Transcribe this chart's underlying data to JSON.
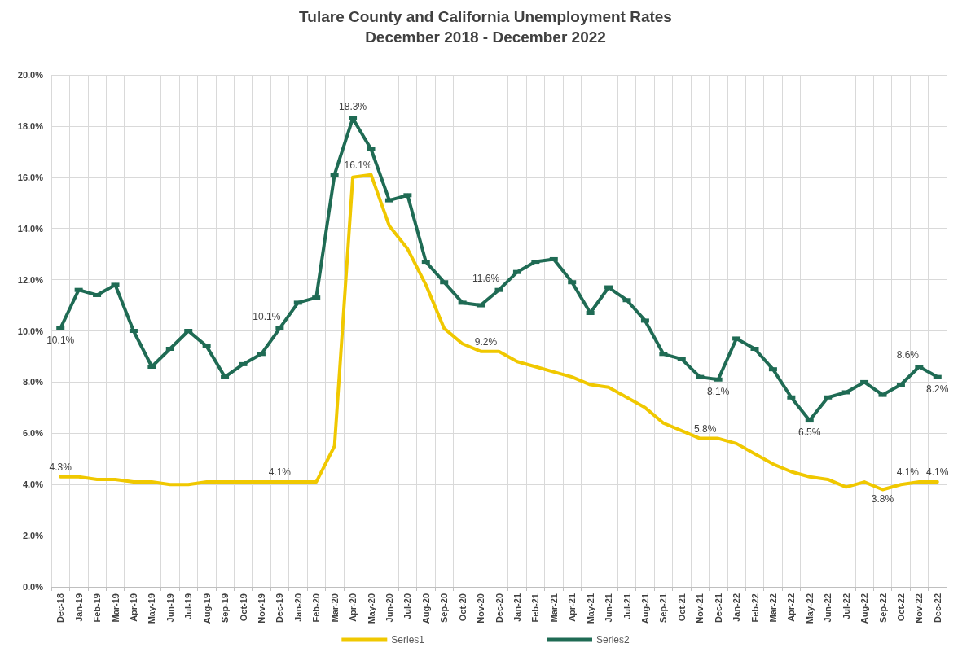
{
  "chart_data": {
    "type": "line",
    "title": "Tulare County and California Unemployment Rates",
    "subtitle": "December 2018 - December 2022",
    "categories": [
      "Dec-18",
      "Jan-19",
      "Feb-19",
      "Mar-19",
      "Apr-19",
      "May-19",
      "Jun-19",
      "Jul-19",
      "Aug-19",
      "Sep-19",
      "Oct-19",
      "Nov-19",
      "Dec-19",
      "Jan-20",
      "Feb-20",
      "Mar-20",
      "Apr-20",
      "May-20",
      "Jun-20",
      "Jul-20",
      "Aug-20",
      "Sep-20",
      "Oct-20",
      "Nov-20",
      "Dec-20",
      "Jan-21",
      "Feb-21",
      "Mar-21",
      "Apr-21",
      "May-21",
      "Jun-21",
      "Jul-21",
      "Aug-21",
      "Sep-21",
      "Oct-21",
      "Nov-21",
      "Dec-21",
      "Jan-22",
      "Feb-22",
      "Mar-22",
      "Apr-22",
      "May-22",
      "Jun-22",
      "Jul-22",
      "Aug-22",
      "Sep-22",
      "Oct-22",
      "Nov-22",
      "Dec-22"
    ],
    "series": [
      {
        "name": "Series1",
        "color": "#f0c800",
        "marker": "none",
        "values": [
          4.3,
          4.3,
          4.2,
          4.2,
          4.1,
          4.1,
          4.0,
          4.0,
          4.1,
          4.1,
          4.1,
          4.1,
          4.1,
          4.1,
          4.1,
          5.5,
          16.0,
          16.1,
          14.1,
          13.2,
          11.8,
          10.1,
          9.5,
          9.2,
          9.2,
          8.8,
          8.6,
          8.4,
          8.2,
          7.9,
          7.8,
          7.4,
          7.0,
          6.4,
          6.1,
          5.8,
          5.8,
          5.6,
          5.2,
          4.8,
          4.5,
          4.3,
          4.2,
          3.9,
          4.1,
          3.8,
          4.0,
          4.1,
          4.1
        ],
        "value_labels": [
          "4.3%",
          null,
          null,
          null,
          null,
          null,
          null,
          null,
          null,
          null,
          null,
          null,
          "4.1%",
          null,
          null,
          null,
          null,
          "16.1%",
          null,
          null,
          null,
          null,
          null,
          null,
          "9.2%",
          null,
          null,
          null,
          null,
          null,
          null,
          null,
          null,
          null,
          null,
          null,
          "5.8%",
          null,
          null,
          null,
          null,
          null,
          null,
          null,
          null,
          "3.8%",
          null,
          "4.1%",
          "4.1%"
        ]
      },
      {
        "name": "Series2",
        "color": "#1f6b54",
        "marker": "square",
        "values": [
          10.1,
          11.6,
          11.4,
          11.8,
          10.0,
          8.6,
          9.3,
          10.0,
          9.4,
          8.2,
          8.7,
          9.1,
          10.1,
          11.1,
          11.3,
          16.1,
          18.3,
          17.1,
          15.1,
          15.3,
          12.7,
          11.9,
          11.1,
          11.0,
          11.6,
          12.3,
          12.7,
          12.8,
          11.9,
          10.7,
          11.7,
          11.2,
          10.4,
          9.1,
          8.9,
          8.2,
          8.1,
          9.7,
          9.3,
          8.5,
          7.4,
          6.5,
          7.4,
          7.6,
          8.0,
          7.5,
          7.9,
          8.6,
          8.2
        ],
        "value_labels": [
          "10.1%",
          null,
          null,
          null,
          null,
          null,
          null,
          null,
          null,
          null,
          null,
          null,
          "10.1%",
          null,
          null,
          null,
          "18.3%",
          null,
          null,
          null,
          null,
          null,
          null,
          null,
          "11.6%",
          null,
          null,
          null,
          null,
          null,
          null,
          null,
          null,
          null,
          null,
          null,
          "8.1%",
          null,
          null,
          null,
          null,
          "6.5%",
          null,
          null,
          null,
          null,
          null,
          "8.6%",
          "8.2%"
        ]
      }
    ],
    "ylim": [
      0,
      20
    ],
    "yticks": [
      {
        "value": 0,
        "label": "0.0%"
      },
      {
        "value": 2,
        "label": "2.0%"
      },
      {
        "value": 4,
        "label": "4.0%"
      },
      {
        "value": 6,
        "label": "6.0%"
      },
      {
        "value": 8,
        "label": "8.0%"
      },
      {
        "value": 10,
        "label": "10.0%"
      },
      {
        "value": 12,
        "label": "12.0%"
      },
      {
        "value": 14,
        "label": "14.0%"
      },
      {
        "value": 16,
        "label": "16.0%"
      },
      {
        "value": 18,
        "label": "18.0%"
      },
      {
        "value": 20,
        "label": "20.0%"
      }
    ],
    "grid": true,
    "legend": "bottom",
    "line_style": "solid"
  }
}
